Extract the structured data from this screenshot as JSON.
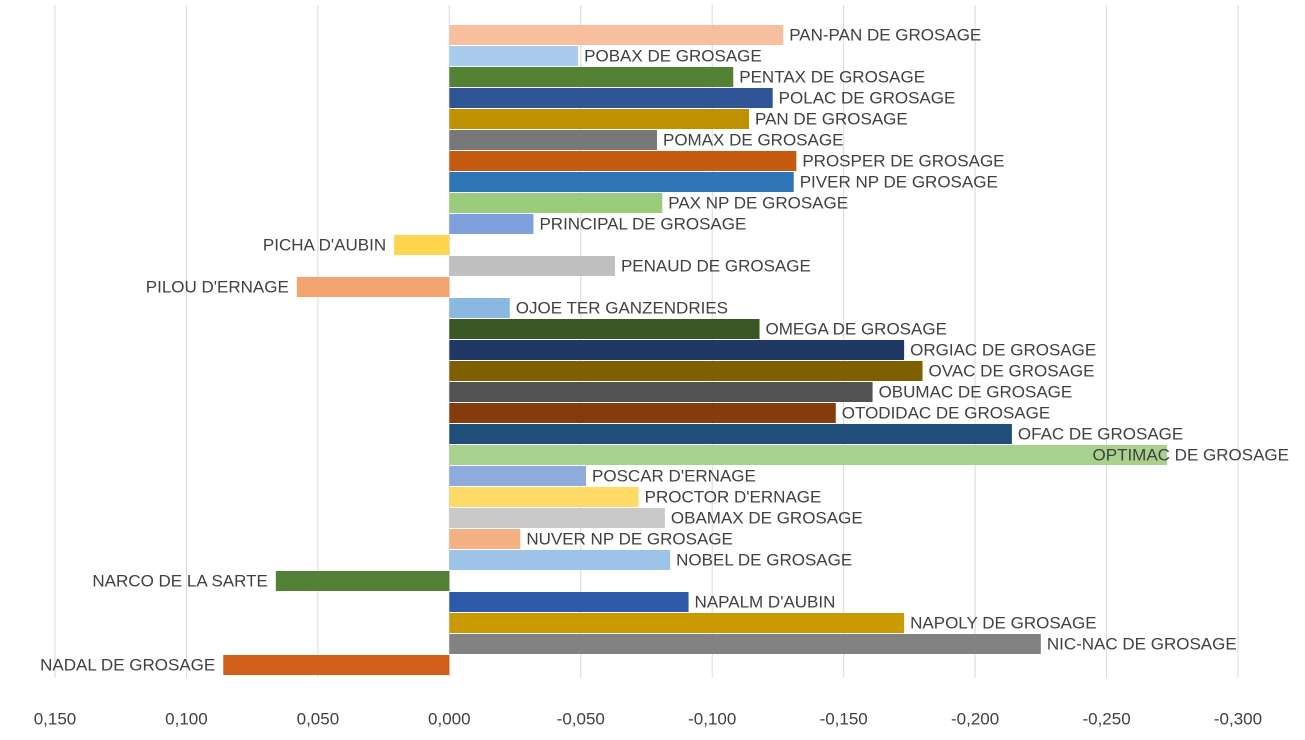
{
  "chart_data": {
    "type": "barh",
    "categories": [
      "PAN-PAN DE GROSAGE",
      "POBAX DE GROSAGE",
      "PENTAX DE GROSAGE",
      "POLAC DE GROSAGE",
      "PAN DE GROSAGE",
      "POMAX DE GROSAGE",
      "PROSPER DE GROSAGE",
      "PIVER NP DE GROSAGE",
      "PAX NP DE GROSAGE",
      "PRINCIPAL DE GROSAGE",
      "PICHA D'AUBIN",
      "PENAUD DE GROSAGE",
      "PILOU D'ERNAGE",
      "OJOE TER GANZENDRIES",
      "OMEGA DE GROSAGE",
      "ORGIAC DE GROSAGE",
      "OVAC DE GROSAGE",
      "OBUMAC DE GROSAGE",
      "OTODIDAC DE GROSAGE",
      "OFAC DE GROSAGE",
      "OPTIMAC DE GROSAGE",
      "POSCAR D'ERNAGE",
      "PROCTOR D'ERNAGE",
      "OBAMAX DE GROSAGE",
      "NUVER NP DE GROSAGE",
      "NOBEL DE GROSAGE",
      "NARCO DE LA SARTE",
      "NAPALM D'AUBIN",
      "NAPOLY DE GROSAGE",
      "NIC-NAC DE GROSAGE",
      "NADAL DE GROSAGE"
    ],
    "values": [
      -0.127,
      -0.049,
      -0.108,
      -0.123,
      -0.114,
      -0.079,
      -0.132,
      -0.131,
      -0.081,
      -0.032,
      0.021,
      -0.063,
      0.058,
      -0.023,
      -0.118,
      -0.173,
      -0.18,
      -0.161,
      -0.147,
      -0.214,
      -0.273,
      -0.052,
      -0.072,
      -0.082,
      -0.027,
      -0.084,
      0.066,
      -0.091,
      -0.173,
      -0.225,
      0.086
    ],
    "colors": [
      "#f8bf9f",
      "#a9cbec",
      "#548235",
      "#2f5597",
      "#bf9000",
      "#787878",
      "#c55a11",
      "#2e75b6",
      "#9bcc7b",
      "#7fa0dc",
      "#ffd54f",
      "#c0c0c0",
      "#f4a470",
      "#8ab8e0",
      "#385723",
      "#203864",
      "#7f6000",
      "#525252",
      "#843c0c",
      "#1f4e79",
      "#a9d18e",
      "#8faadc",
      "#ffd966",
      "#c9c9c9",
      "#f4b183",
      "#9dc3e6",
      "#538135",
      "#2e59a8",
      "#c99a00",
      "#828282",
      "#d2601a"
    ],
    "xlim": [
      0.15,
      -0.3
    ],
    "xticks": [
      {
        "value": 0.15,
        "label": "0,150"
      },
      {
        "value": 0.1,
        "label": "0,100"
      },
      {
        "value": 0.05,
        "label": "0,050"
      },
      {
        "value": 0,
        "label": "0,000"
      },
      {
        "value": -0.05,
        "label": "-0,050"
      },
      {
        "value": -0.1,
        "label": "-0,100"
      },
      {
        "value": -0.15,
        "label": "-0,150"
      },
      {
        "value": -0.2,
        "label": "-0,200"
      },
      {
        "value": -0.25,
        "label": "-0,250"
      },
      {
        "value": -0.3,
        "label": "-0,300"
      }
    ],
    "grid": true
  }
}
